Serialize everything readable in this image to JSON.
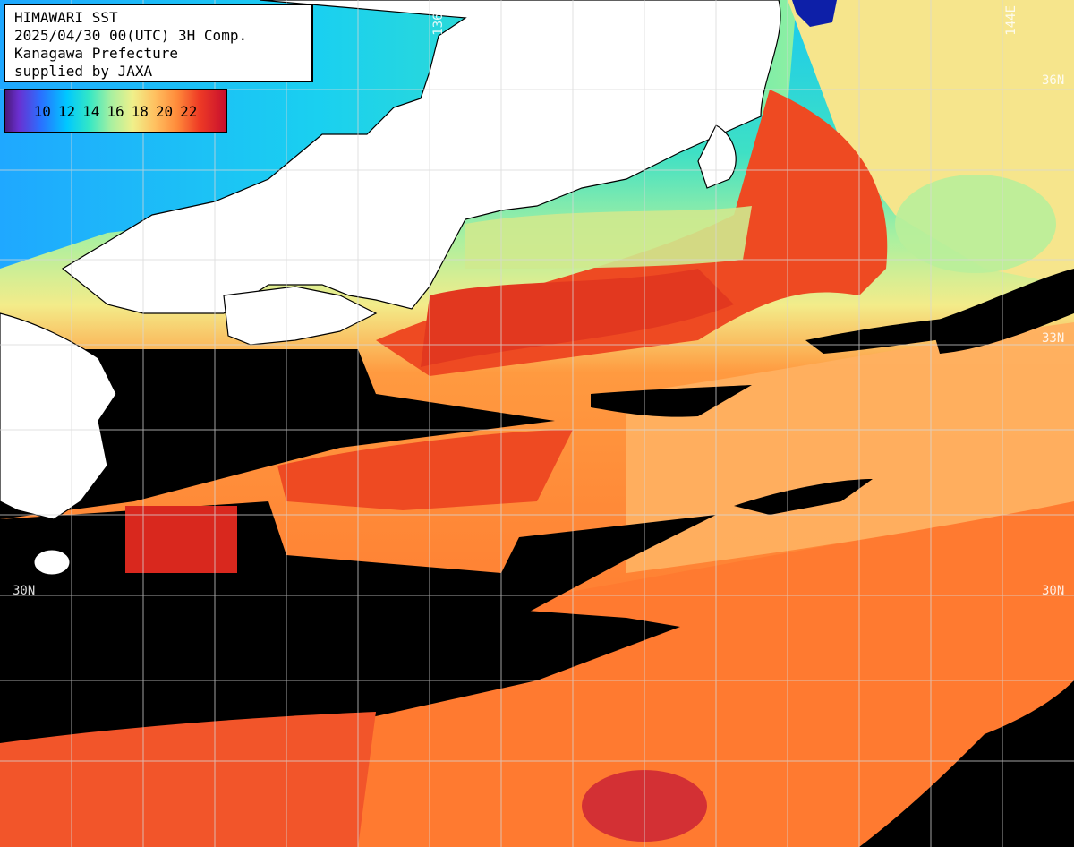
{
  "info": {
    "line1": "HIMAWARI SST",
    "line2": "2025/04/30 00(UTC) 3H Comp.",
    "line3": "Kanagawa Prefecture",
    "line4": "supplied by JAXA"
  },
  "legend": {
    "ticks": [
      "10",
      "12",
      "14",
      "16",
      "18",
      "20",
      "22"
    ]
  },
  "graticule": {
    "lon_labels": [
      "136E",
      "144E"
    ],
    "lat_labels_left": [
      "30N"
    ],
    "lat_labels_right": [
      "36N",
      "33N",
      "30N"
    ]
  },
  "colors": {
    "land": "#ffffff",
    "no_data": "#000000",
    "grid": "#d8d8d8",
    "warm_red": "#e83a1e",
    "orange": "#ff7a30",
    "light_orange": "#ffb060",
    "yellow": "#f3ec8a",
    "green": "#8ef0a2",
    "cyan": "#18c9f0",
    "blue": "#1f74ff",
    "deep_blue": "#0d1fa8"
  }
}
